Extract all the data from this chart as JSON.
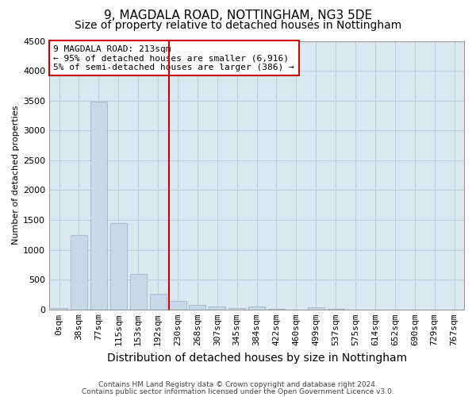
{
  "title": "9, MAGDALA ROAD, NOTTINGHAM, NG3 5DE",
  "subtitle": "Size of property relative to detached houses in Nottingham",
  "xlabel": "Distribution of detached houses by size in Nottingham",
  "ylabel": "Number of detached properties",
  "bar_labels": [
    "0sqm",
    "38sqm",
    "77sqm",
    "115sqm",
    "153sqm",
    "192sqm",
    "230sqm",
    "268sqm",
    "307sqm",
    "345sqm",
    "384sqm",
    "422sqm",
    "460sqm",
    "499sqm",
    "537sqm",
    "575sqm",
    "614sqm",
    "652sqm",
    "690sqm",
    "729sqm",
    "767sqm"
  ],
  "bar_values": [
    30,
    1250,
    3480,
    1450,
    590,
    260,
    145,
    80,
    50,
    20,
    45,
    5,
    0,
    40,
    5,
    0,
    0,
    0,
    0,
    0,
    0
  ],
  "bar_color": "#c8d8e8",
  "bar_edgecolor": "#a0b4cc",
  "vline_color": "#cc0000",
  "annotation_line1": "9 MAGDALA ROAD: 213sqm",
  "annotation_line2": "← 95% of detached houses are smaller (6,916)",
  "annotation_line3": "5% of semi-detached houses are larger (386) →",
  "annotation_box_edgecolor": "#cc0000",
  "ylim": [
    0,
    4500
  ],
  "yticks": [
    0,
    500,
    1000,
    1500,
    2000,
    2500,
    3000,
    3500,
    4000,
    4500
  ],
  "footnote1": "Contains HM Land Registry data © Crown copyright and database right 2024.",
  "footnote2": "Contains public sector information licensed under the Open Government Licence v3.0.",
  "background_color": "#ffffff",
  "plot_bg_color": "#dce8f0",
  "grid_color": "#c0ccd8",
  "title_fontsize": 11,
  "subtitle_fontsize": 10,
  "xlabel_fontsize": 10,
  "ylabel_fontsize": 8,
  "tick_fontsize": 8,
  "annot_fontsize": 8,
  "footnote_fontsize": 6.5
}
